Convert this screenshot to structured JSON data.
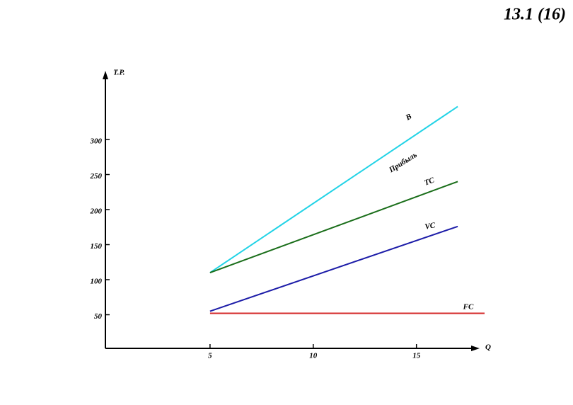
{
  "chart_data": {
    "type": "line",
    "title": "13.1 (16)",
    "x_label": "Q",
    "y_label": "T.P.",
    "annotation": "Прибыль",
    "xlim": [
      0,
      18.3
    ],
    "ylim": [
      0,
      400
    ],
    "xticks": [
      5,
      10,
      15
    ],
    "yticks": [
      50,
      100,
      150,
      200,
      250,
      300
    ],
    "series": [
      {
        "name": "B",
        "color": "#22d3e6",
        "x": [
          5,
          17
        ],
        "values": [
          110,
          347
        ]
      },
      {
        "name": "TC",
        "color": "#1a6e1a",
        "x": [
          5,
          17
        ],
        "values": [
          110,
          240
        ]
      },
      {
        "name": "VC",
        "color": "#1c1ca8",
        "x": [
          5,
          17
        ],
        "values": [
          55,
          176
        ]
      },
      {
        "name": "FC",
        "color": "#d42a2a",
        "x": [
          5,
          18.3
        ],
        "values": [
          52,
          52
        ]
      }
    ]
  }
}
